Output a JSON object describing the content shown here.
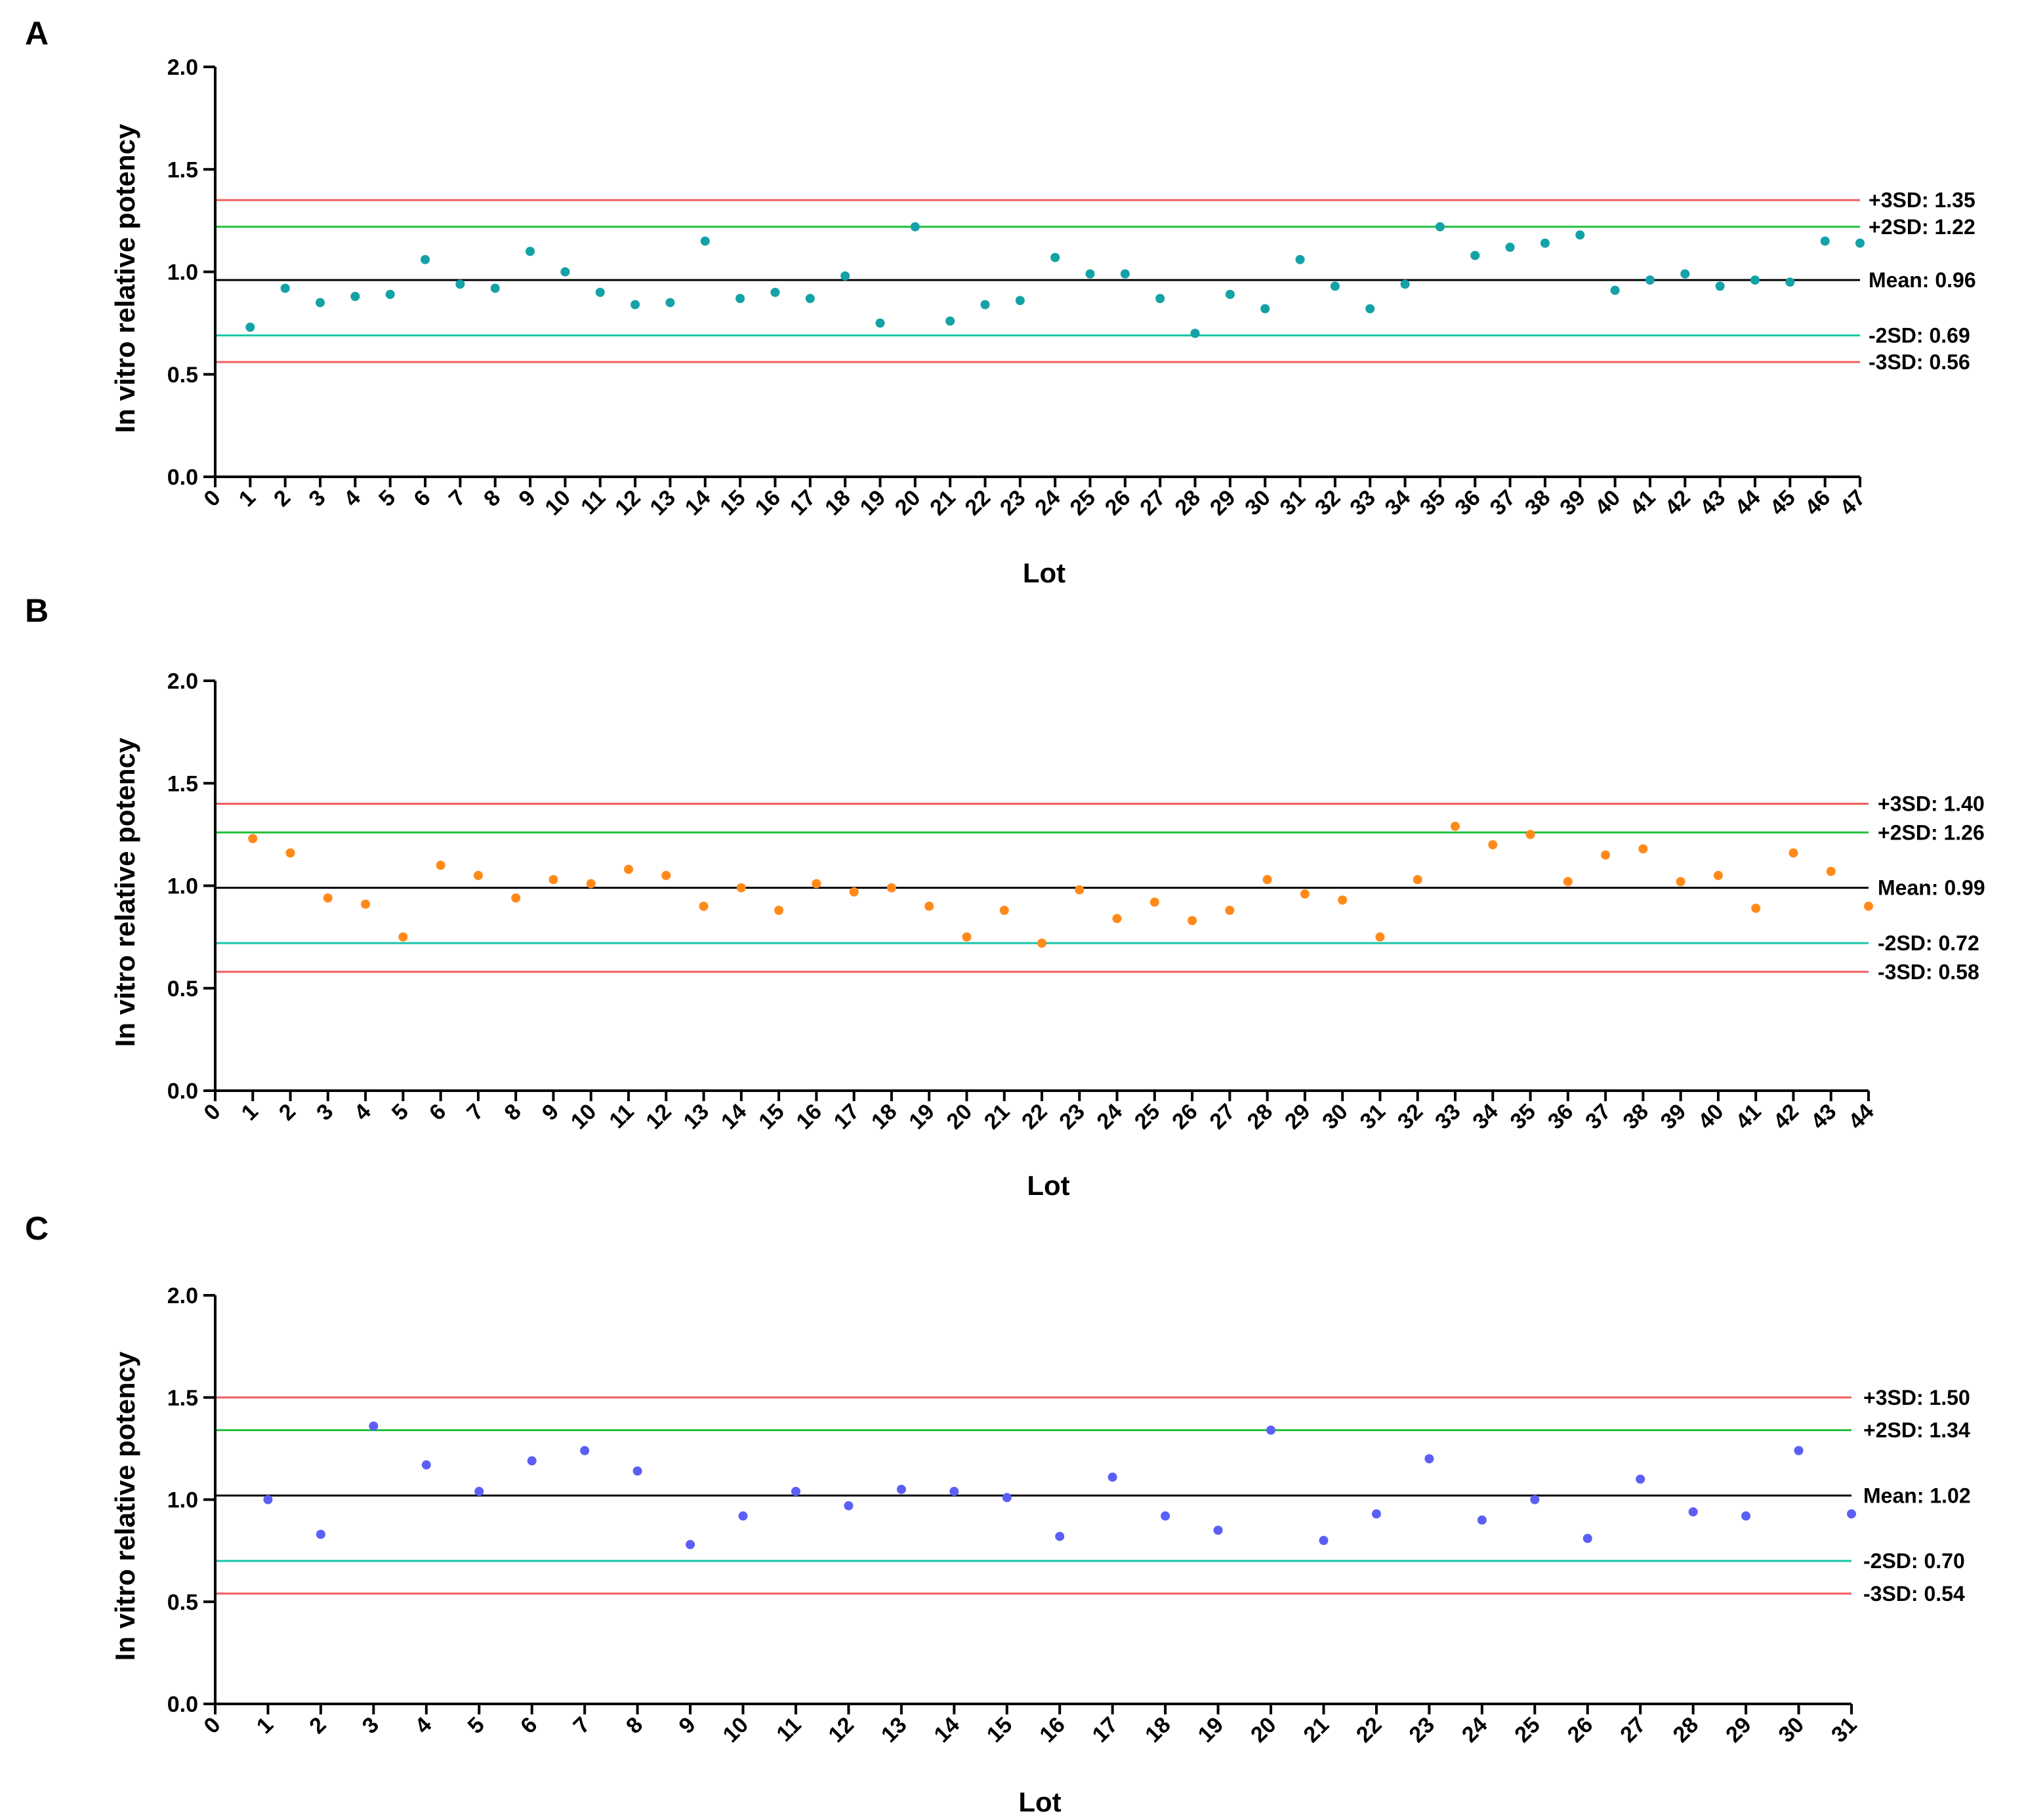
{
  "chart_data": [
    {
      "panel": "A",
      "type": "scatter",
      "xlabel": "Lot",
      "ylabel": "In vitro relative potency",
      "xlim": [
        0,
        47
      ],
      "ylim": [
        0,
        2.0
      ],
      "yticks": [
        "0.0",
        "0.5",
        "1.0",
        "1.5",
        "2.0"
      ],
      "point_color": "#13a2a6",
      "x": [
        1,
        2,
        3,
        4,
        5,
        6,
        7,
        8,
        9,
        10,
        11,
        12,
        13,
        14,
        15,
        16,
        17,
        18,
        19,
        20,
        21,
        22,
        23,
        24,
        25,
        26,
        27,
        28,
        29,
        30,
        31,
        32,
        33,
        34,
        35,
        36,
        37,
        38,
        39,
        40,
        41,
        42,
        43,
        44,
        45,
        46,
        47
      ],
      "values": [
        0.73,
        0.92,
        0.85,
        0.88,
        0.89,
        1.06,
        0.94,
        0.92,
        1.1,
        1.0,
        0.9,
        0.84,
        0.85,
        1.15,
        0.87,
        0.9,
        0.87,
        0.98,
        0.75,
        1.22,
        0.76,
        0.84,
        0.86,
        1.07,
        0.99,
        0.99,
        0.87,
        0.7,
        0.89,
        0.82,
        1.06,
        0.93,
        0.82,
        0.94,
        1.22,
        1.08,
        1.12,
        1.14,
        1.18,
        0.91,
        0.96,
        0.99,
        0.93,
        0.96,
        0.95,
        1.15,
        1.14
      ],
      "reference_lines": [
        {
          "label": "+3SD: 1.35",
          "value": 1.35,
          "color": "#f25c5c"
        },
        {
          "label": "+2SD: 1.22",
          "value": 1.22,
          "color": "#1fbf3a"
        },
        {
          "label": "Mean: 0.96",
          "value": 0.96,
          "color": "#000000"
        },
        {
          "label": "-2SD: 0.69",
          "value": 0.69,
          "color": "#18c4a8"
        },
        {
          "label": "-3SD: 0.56",
          "value": 0.56,
          "color": "#f25c5c"
        }
      ]
    },
    {
      "panel": "B",
      "type": "scatter",
      "xlabel": "Lot",
      "ylabel": "In vitro relative potency",
      "xlim": [
        0,
        44
      ],
      "ylim": [
        0,
        2.0
      ],
      "yticks": [
        "0.0",
        "0.5",
        "1.0",
        "1.5",
        "2.0"
      ],
      "point_color": "#ff8a1a",
      "x": [
        1,
        2,
        3,
        4,
        5,
        6,
        7,
        8,
        9,
        10,
        11,
        12,
        13,
        14,
        15,
        16,
        17,
        18,
        19,
        20,
        21,
        22,
        23,
        24,
        25,
        26,
        27,
        28,
        29,
        30,
        31,
        32,
        33,
        34,
        35,
        36,
        37,
        38,
        39,
        40,
        41,
        42,
        43,
        44
      ],
      "values": [
        1.23,
        1.16,
        0.94,
        0.91,
        0.75,
        1.1,
        1.05,
        0.94,
        1.03,
        1.01,
        1.08,
        1.05,
        0.9,
        0.99,
        0.88,
        1.01,
        0.97,
        0.99,
        0.9,
        0.75,
        0.88,
        0.72,
        0.98,
        0.84,
        0.92,
        0.83,
        0.88,
        1.03,
        0.96,
        0.93,
        0.75,
        1.03,
        1.29,
        1.2,
        1.25,
        1.02,
        1.15,
        1.18,
        1.02,
        1.05,
        0.89,
        1.16,
        1.07,
        0.9
      ],
      "reference_lines": [
        {
          "label": "+3SD: 1.40",
          "value": 1.4,
          "color": "#f25c5c"
        },
        {
          "label": "+2SD: 1.26",
          "value": 1.26,
          "color": "#1fbf3a"
        },
        {
          "label": "Mean: 0.99",
          "value": 0.99,
          "color": "#000000"
        },
        {
          "label": "-2SD: 0.72",
          "value": 0.72,
          "color": "#18c4a8"
        },
        {
          "label": "-3SD: 0.58",
          "value": 0.58,
          "color": "#f25c5c"
        }
      ]
    },
    {
      "panel": "C",
      "type": "scatter",
      "xlabel": "Lot",
      "ylabel": "In vitro relative potency",
      "xlim": [
        0,
        31
      ],
      "ylim": [
        0,
        2.0
      ],
      "yticks": [
        "0.0",
        "0.5",
        "1.0",
        "1.5",
        "2.0"
      ],
      "point_color": "#5b5ff5",
      "x": [
        1,
        2,
        3,
        4,
        5,
        6,
        7,
        8,
        9,
        10,
        11,
        12,
        13,
        14,
        15,
        16,
        17,
        18,
        19,
        20,
        21,
        22,
        23,
        24,
        25,
        26,
        27,
        28,
        29,
        30,
        31
      ],
      "values": [
        1.0,
        0.83,
        1.36,
        1.17,
        1.04,
        1.19,
        1.24,
        1.14,
        0.78,
        0.92,
        1.04,
        0.97,
        1.05,
        1.04,
        1.01,
        0.82,
        1.11,
        0.92,
        0.85,
        1.34,
        0.8,
        0.93,
        1.2,
        0.9,
        1.0,
        0.81,
        1.1,
        0.94,
        0.92,
        1.24,
        0.93
      ],
      "reference_lines": [
        {
          "label": "+3SD: 1.50",
          "value": 1.5,
          "color": "#f25c5c"
        },
        {
          "label": "+2SD: 1.34",
          "value": 1.34,
          "color": "#1fbf3a"
        },
        {
          "label": "Mean: 1.02",
          "value": 1.02,
          "color": "#000000"
        },
        {
          "label": "-2SD: 0.70",
          "value": 0.7,
          "color": "#18c4a8"
        },
        {
          "label": "-3SD: 0.54",
          "value": 0.54,
          "color": "#f25c5c"
        }
      ]
    }
  ]
}
